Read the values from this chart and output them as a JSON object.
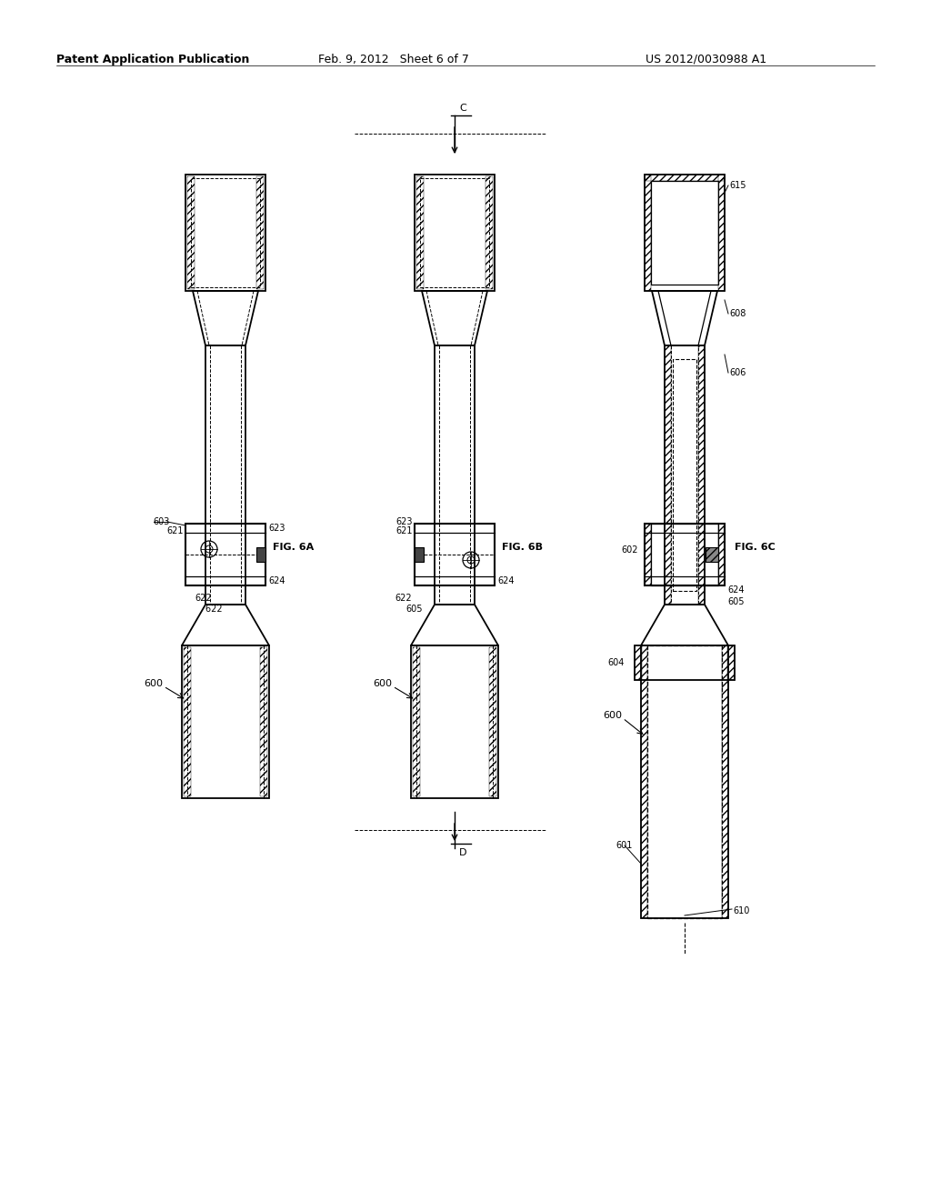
{
  "title_left": "Patent Application Publication",
  "title_mid": "Feb. 9, 2012   Sheet 6 of 7",
  "title_right": "US 2012/0030988 A1",
  "bg_color": "#ffffff",
  "line_color": "#000000",
  "fig6a_label": "FIG. 6A",
  "fig6b_label": "FIG. 6B",
  "fig6c_label": "FIG. 6C",
  "gray_light": "#cccccc",
  "gray_dark": "#555555",
  "label_600a": "600",
  "label_600b": "600",
  "label_600c": "600",
  "label_603": "603",
  "label_621a": "621",
  "label_621b": "621",
  "label_622a": "622",
  "label_622b": "622",
  "label_623a": "623",
  "label_623b": "623",
  "label_624a": "624",
  "label_624b": "624",
  "label_605b": "605",
  "label_605c": "605",
  "label_601": "601",
  "label_602": "602",
  "label_604": "604",
  "label_606": "606",
  "label_608": "608",
  "label_610": "610",
  "label_615": "615",
  "label_C": "C",
  "label_D": "D"
}
